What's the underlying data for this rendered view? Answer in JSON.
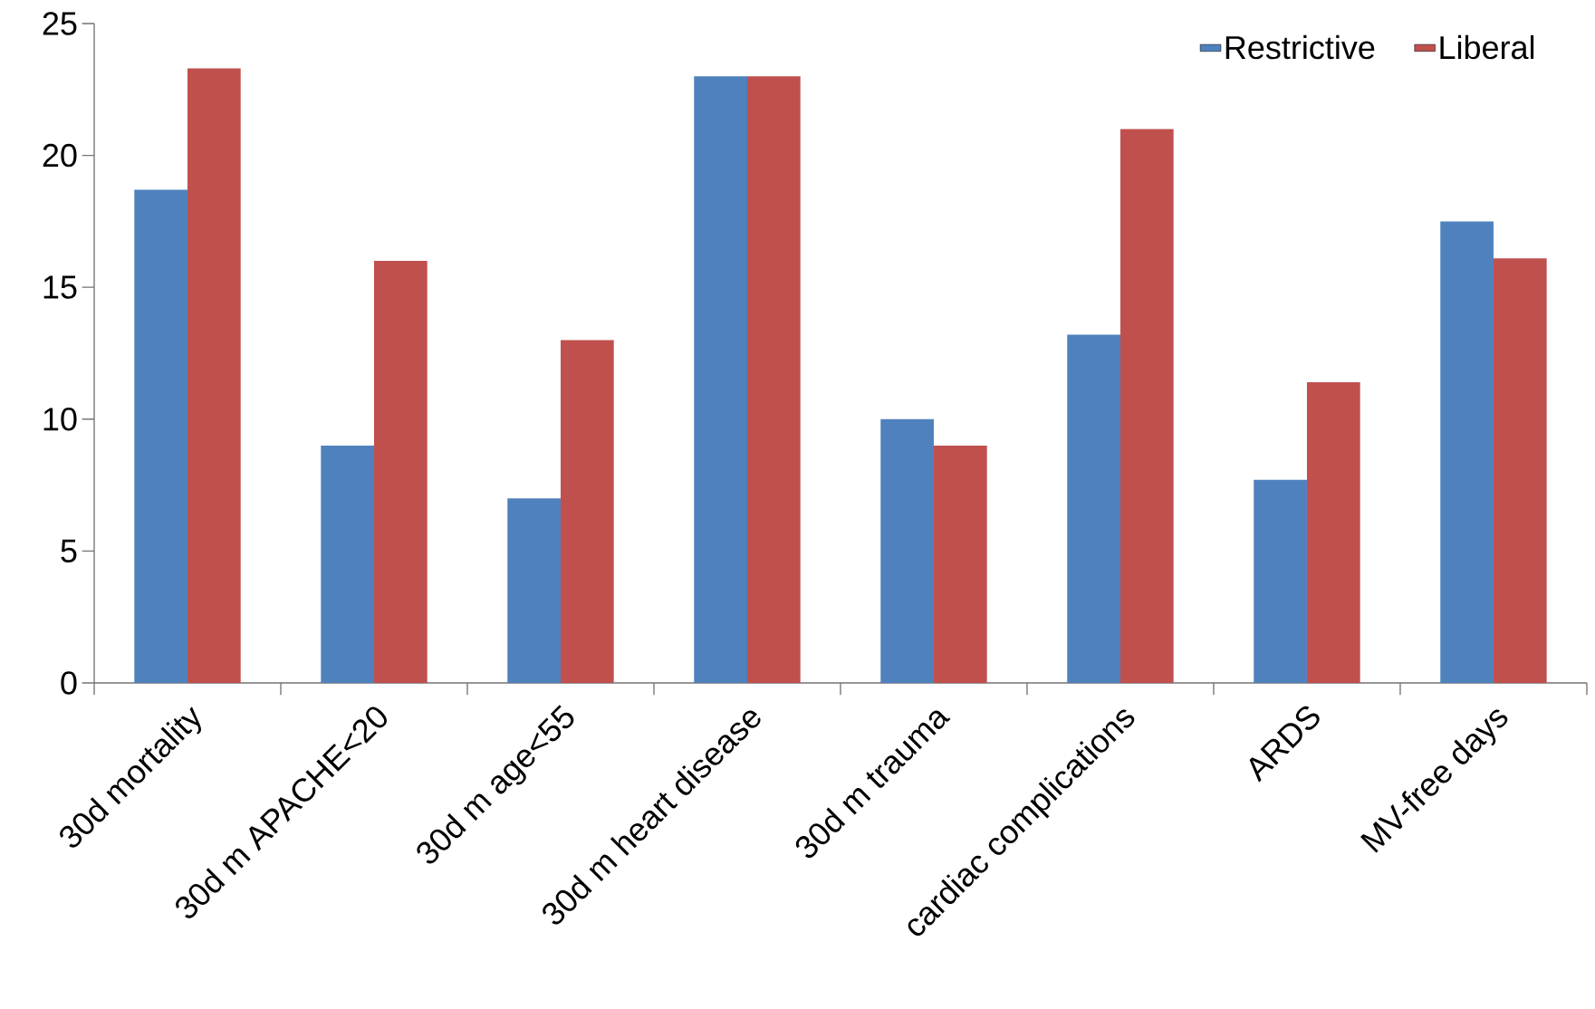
{
  "chart_data": {
    "type": "bar",
    "categories": [
      "30d mortality",
      "30d m APACHE<20",
      "30d m age<55",
      "30d m heart disease",
      "30d m trauma",
      "cardiac complications",
      "ARDS",
      "MV-free days"
    ],
    "series": [
      {
        "name": "Restrictive",
        "color": "#4f81bd",
        "values": [
          18.7,
          9.0,
          7.0,
          23.0,
          10.0,
          13.2,
          7.7,
          17.5
        ]
      },
      {
        "name": "Liberal",
        "color": "#c0504d",
        "values": [
          23.3,
          16.0,
          13.0,
          23.0,
          9.0,
          21.0,
          11.4,
          16.1
        ]
      }
    ],
    "ylim": [
      0,
      25
    ],
    "yticks": [
      0,
      5,
      10,
      15,
      20,
      25
    ],
    "legend": "top right",
    "grid": false
  }
}
